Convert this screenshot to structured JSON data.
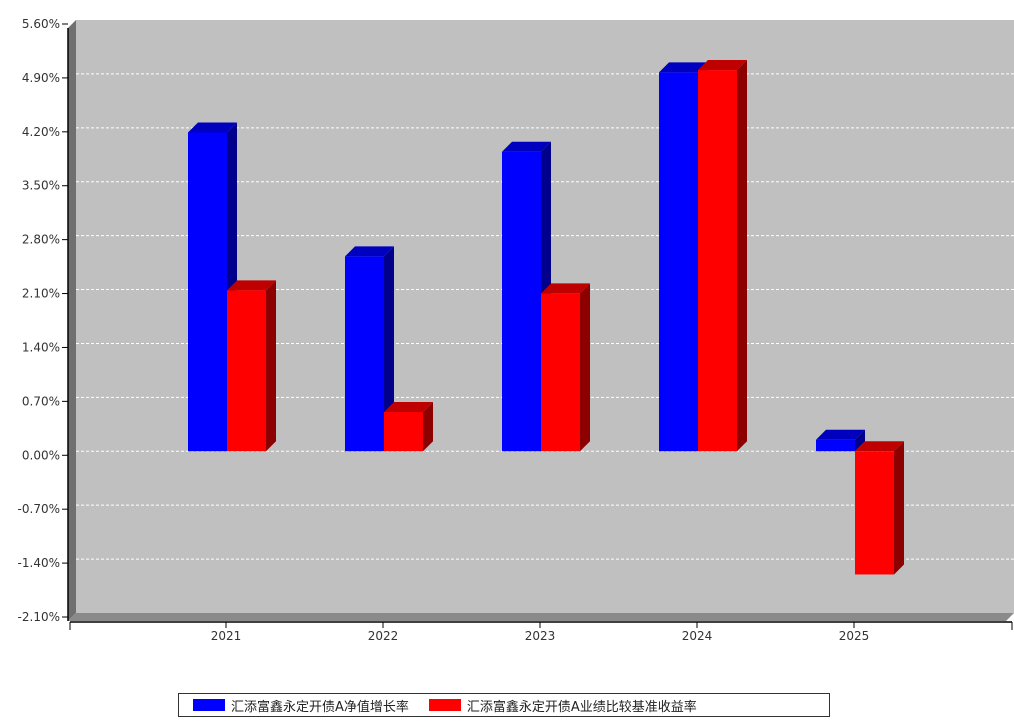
{
  "chart_data": {
    "type": "bar",
    "categories": [
      "2021",
      "2022",
      "2023",
      "2024",
      "2025"
    ],
    "series": [
      {
        "name": "汇添富鑫永定开债A净值增长率",
        "color": "#0000ff",
        "values": [
          4.14,
          2.53,
          3.89,
          4.92,
          0.15
        ]
      },
      {
        "name": "汇添富鑫永定开债A业绩比较基准收益率",
        "color": "#ff0000",
        "values": [
          2.09,
          0.51,
          2.05,
          4.95,
          -1.6
        ]
      }
    ],
    "y_ticks": [
      "5.60%",
      "4.90%",
      "4.20%",
      "3.50%",
      "2.80%",
      "2.10%",
      "1.40%",
      "0.70%",
      "0.00%",
      "-0.70%",
      "-1.40%",
      "-2.10%"
    ],
    "ylim": [
      -2.1,
      5.6
    ],
    "grid": true,
    "legend_position": "bottom",
    "plot_background": "#c0c0c0"
  }
}
